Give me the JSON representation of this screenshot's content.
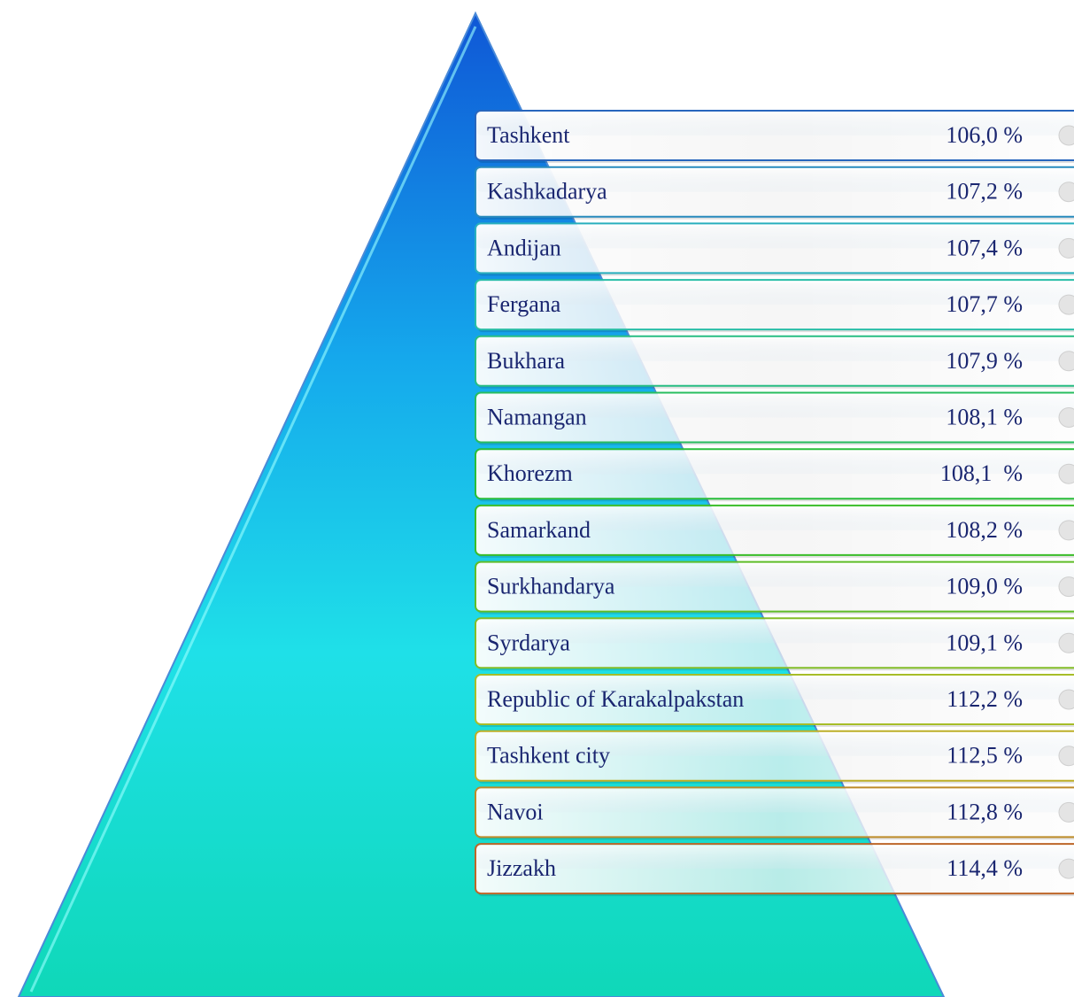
{
  "rows": [
    {
      "name": "Tashkent",
      "value": "106,0 %"
    },
    {
      "name": "Kashkadarya",
      "value": "107,2 %"
    },
    {
      "name": "Andijan",
      "value": "107,4 %"
    },
    {
      "name": "Fergana",
      "value": "107,7 %"
    },
    {
      "name": "Bukhara",
      "value": "107,9 %"
    },
    {
      "name": "Namangan",
      "value": "108,1 %"
    },
    {
      "name": "Khorezm",
      "value": "108,1  %"
    },
    {
      "name": "Samarkand",
      "value": "108,2 %"
    },
    {
      "name": "Surkhandarya",
      "value": "109,0 %"
    },
    {
      "name": "Syrdarya",
      "value": "109,1 %"
    },
    {
      "name": "Republic of Karakalpakstan",
      "value": "112,2 %"
    },
    {
      "name": "Tashkent city",
      "value": "112,5 %"
    },
    {
      "name": "Navoi",
      "value": "112,8 %"
    },
    {
      "name": "Jizzakh",
      "value": "114,4 %"
    }
  ]
}
